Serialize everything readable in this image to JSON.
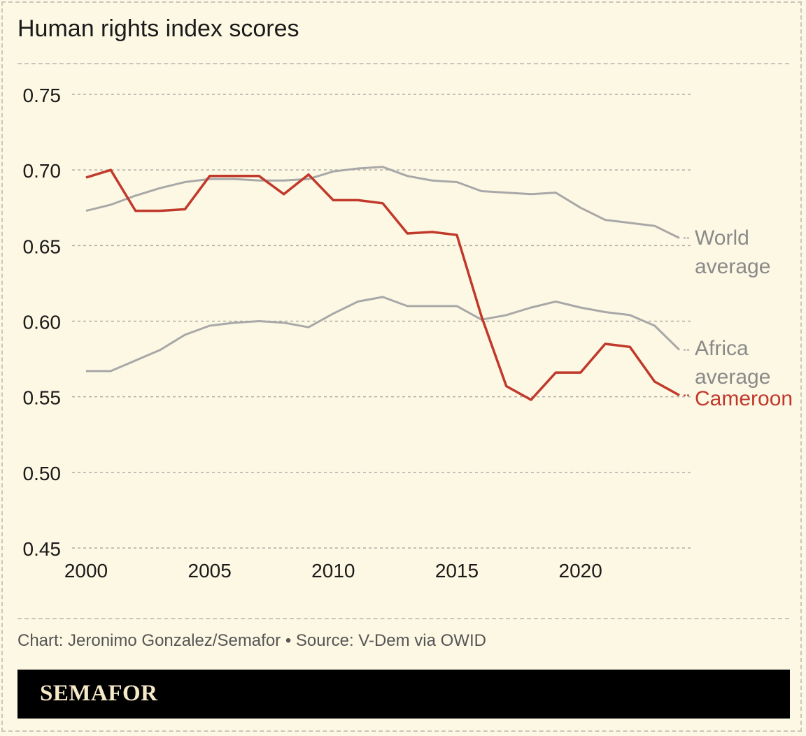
{
  "title": "Human rights index scores",
  "source": "Chart: Jeronimo Gonzalez/Semafor • Source: V-Dem via OWID",
  "brand": "SEMAFOR",
  "colors": {
    "background": "#fdf8e4",
    "world": "#a8a8a8",
    "africa": "#a8a8a8",
    "cameroon": "#c0392b",
    "grid": "#b0ada5",
    "brand_bar": "#000000",
    "brand_text": "#f5e9c8"
  },
  "chart_data": {
    "type": "line",
    "title": "Human rights index scores",
    "xlabel": "",
    "ylabel": "",
    "xlim": [
      2000,
      2024
    ],
    "ylim": [
      0.45,
      0.75
    ],
    "x_ticks": [
      2000,
      2005,
      2010,
      2015,
      2020
    ],
    "y_ticks": [
      0.45,
      0.5,
      0.55,
      0.6,
      0.65,
      0.7,
      0.75
    ],
    "y_tick_labels": [
      "0.45",
      "0.50",
      "0.55",
      "0.60",
      "0.65",
      "0.70",
      "0.75"
    ],
    "grid": "horizontal dashed",
    "legend": "direct labels at line ends",
    "x": [
      2000,
      2001,
      2002,
      2003,
      2004,
      2005,
      2006,
      2007,
      2008,
      2009,
      2010,
      2011,
      2012,
      2013,
      2014,
      2015,
      2016,
      2017,
      2018,
      2019,
      2020,
      2021,
      2022,
      2023,
      2024
    ],
    "series": [
      {
        "name": "World average",
        "label_lines": [
          "World",
          "average"
        ],
        "color": "#a8a8a8",
        "values": [
          0.673,
          0.677,
          0.683,
          0.688,
          0.692,
          0.694,
          0.694,
          0.693,
          0.693,
          0.694,
          0.699,
          0.701,
          0.702,
          0.696,
          0.693,
          0.692,
          0.686,
          0.685,
          0.684,
          0.685,
          0.675,
          0.667,
          0.665,
          0.663,
          0.655
        ]
      },
      {
        "name": "Africa average",
        "label_lines": [
          "Africa",
          "average"
        ],
        "color": "#a8a8a8",
        "values": [
          0.567,
          0.567,
          0.574,
          0.581,
          0.591,
          0.597,
          0.599,
          0.6,
          0.599,
          0.596,
          0.605,
          0.613,
          0.616,
          0.61,
          0.61,
          0.61,
          0.601,
          0.604,
          0.609,
          0.613,
          0.609,
          0.606,
          0.604,
          0.597,
          0.581
        ]
      },
      {
        "name": "Cameroon",
        "label_lines": [
          "Cameroon"
        ],
        "color": "#c0392b",
        "values": [
          0.695,
          0.7,
          0.673,
          0.673,
          0.674,
          0.696,
          0.696,
          0.696,
          0.684,
          0.697,
          0.68,
          0.68,
          0.678,
          0.658,
          0.659,
          0.657,
          0.603,
          0.557,
          0.548,
          0.566,
          0.566,
          0.585,
          0.583,
          0.56,
          0.551
        ]
      }
    ]
  }
}
